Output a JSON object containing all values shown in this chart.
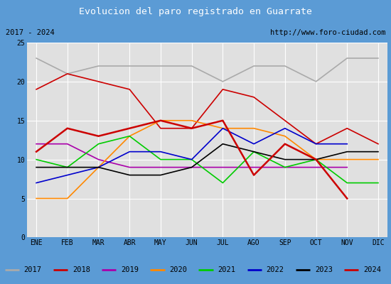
{
  "title": "Evolucion del paro registrado en Guarrate",
  "subtitle_left": "2017 - 2024",
  "subtitle_right": "http://www.foro-ciudad.com",
  "months": [
    "ENE",
    "FEB",
    "MAR",
    "ABR",
    "MAY",
    "JUN",
    "JUL",
    "AGO",
    "SEP",
    "OCT",
    "NOV",
    "DIC"
  ],
  "ylim": [
    0,
    25
  ],
  "yticks": [
    0,
    5,
    10,
    15,
    20,
    25
  ],
  "series_order": [
    "2017",
    "2018",
    "2019",
    "2020",
    "2021",
    "2022",
    "2023",
    "2024"
  ],
  "series": {
    "2017": {
      "values": [
        23,
        21,
        22,
        22,
        22,
        22,
        20,
        22,
        22,
        20,
        23,
        23
      ],
      "color": "#aaaaaa",
      "linewidth": 1.2
    },
    "2018": {
      "values": [
        19,
        21,
        20,
        19,
        14,
        14,
        19,
        18,
        15,
        12,
        14,
        12
      ],
      "color": "#cc0000",
      "linewidth": 1.2
    },
    "2019": {
      "values": [
        12,
        12,
        10,
        9,
        9,
        9,
        9,
        9,
        9,
        9,
        9,
        null
      ],
      "color": "#aa00aa",
      "linewidth": 1.2
    },
    "2020": {
      "values": [
        5,
        5,
        9,
        13,
        15,
        15,
        14,
        14,
        13,
        10,
        10,
        10
      ],
      "color": "#ff8800",
      "linewidth": 1.2
    },
    "2021": {
      "values": [
        10,
        9,
        12,
        13,
        10,
        10,
        7,
        11,
        9,
        10,
        7,
        7
      ],
      "color": "#00cc00",
      "linewidth": 1.2
    },
    "2022": {
      "values": [
        7,
        8,
        9,
        11,
        11,
        10,
        14,
        12,
        14,
        12,
        12,
        null
      ],
      "color": "#0000cc",
      "linewidth": 1.2
    },
    "2023": {
      "values": [
        9,
        9,
        9,
        8,
        8,
        9,
        12,
        11,
        10,
        10,
        11,
        11
      ],
      "color": "#000000",
      "linewidth": 1.2
    },
    "2024": {
      "values": [
        11,
        14,
        13,
        14,
        15,
        14,
        15,
        8,
        12,
        10,
        5,
        null
      ],
      "color": "#cc0000",
      "linewidth": 1.8
    }
  },
  "title_bg_color": "#5b9bd5",
  "title_text_color": "#ffffff",
  "plot_bg_color": "#e0e0e0",
  "grid_color": "#ffffff",
  "border_color": "#5b9bd5",
  "legend_years": [
    "2017",
    "2018",
    "2019",
    "2020",
    "2021",
    "2022",
    "2023",
    "2024"
  ],
  "legend_colors": [
    "#aaaaaa",
    "#cc0000",
    "#aa00aa",
    "#ff8800",
    "#00cc00",
    "#0000cc",
    "#000000",
    "#cc0000"
  ]
}
